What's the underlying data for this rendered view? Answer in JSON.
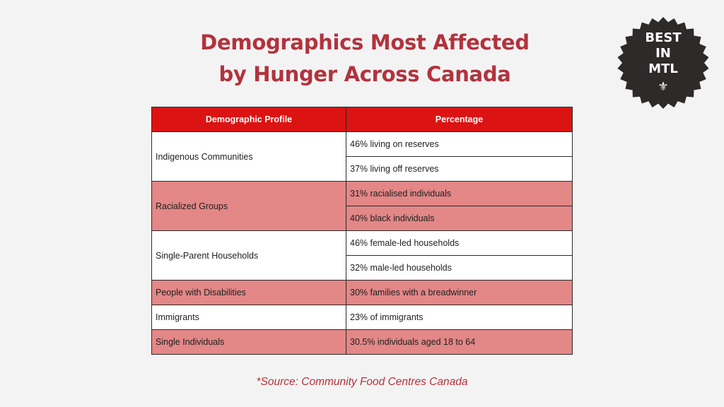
{
  "title": {
    "line1": "Demographics Most Affected",
    "line2": "by Hunger Across Canada"
  },
  "badge": {
    "line1": "BEST",
    "line2": "IN",
    "line3": "MTL",
    "icon": "fleur-de-lis-icon",
    "bg_color": "#2e2a2a"
  },
  "table": {
    "headers": [
      "Demographic Profile",
      "Percentage"
    ],
    "header_color": "#dc1313",
    "band_color": "#e38787",
    "groups": [
      {
        "profile": "Indigenous Communities",
        "values": [
          "46% living on reserves",
          "37% living off reserves"
        ]
      },
      {
        "profile": "Racialized Groups",
        "values": [
          "31% racialised individuals",
          "40% black individuals"
        ]
      },
      {
        "profile": "Single-Parent Households",
        "values": [
          "46% female-led households",
          "32% male-led households"
        ]
      },
      {
        "profile": "People with Disabilities",
        "values": [
          "30% families with a breadwinner"
        ]
      },
      {
        "profile": "Immigrants",
        "values": [
          "23% of immigrants"
        ]
      },
      {
        "profile": "Single Individuals",
        "values": [
          "30.5% individuals aged 18 to 64"
        ]
      }
    ]
  },
  "source": "*Source:  Community Food Centres Canada"
}
